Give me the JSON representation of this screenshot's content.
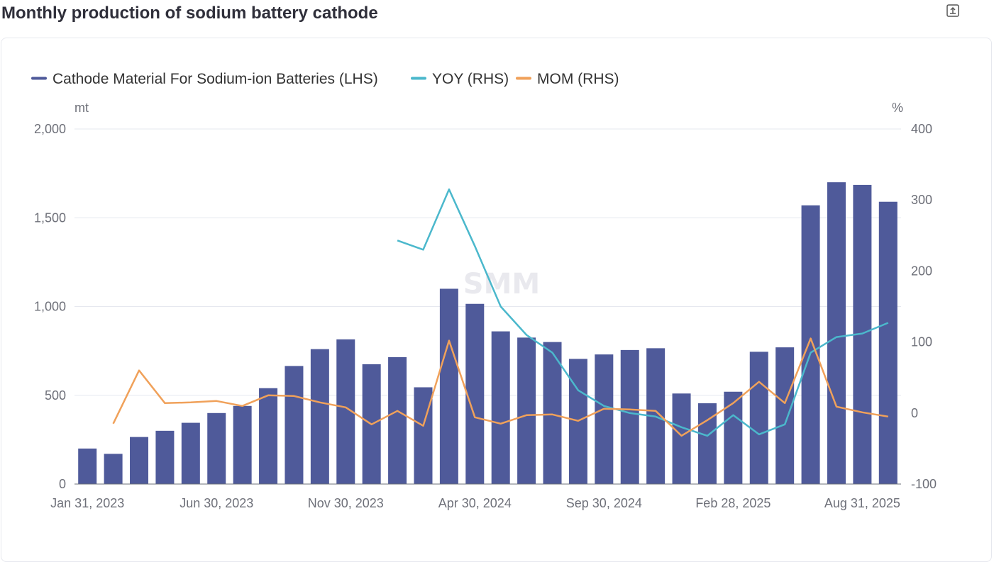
{
  "page": {
    "title": "Monthly production of sodium battery cathode",
    "export_icon": "export-icon"
  },
  "watermark": "SMM",
  "colors": {
    "bar": "#4f5a9a",
    "yoy": "#4bb8cc",
    "mom": "#f0a15a",
    "grid": "#e6e8ef",
    "axis": "#6e7079"
  },
  "chart_data": {
    "type": "bar",
    "legend_position": "top-left",
    "grid": true,
    "left_axis": {
      "unit": "mt",
      "ylim": [
        0,
        2000
      ],
      "ticks": [
        "0",
        "500",
        "1,000",
        "1,500",
        "2,000"
      ]
    },
    "right_axis": {
      "unit": "%",
      "ylim": [
        -100,
        400
      ],
      "ticks": [
        "-100",
        "0",
        "100",
        "200",
        "300",
        "400"
      ]
    },
    "x_tick_labels": [
      "Jan 31, 2023",
      "Jun 30, 2023",
      "Nov 30, 2023",
      "Apr 30, 2024",
      "Sep 30, 2024",
      "Feb 28, 2025",
      "Aug 31, 2025"
    ],
    "categories": [
      "2023-01-31",
      "2023-02-28",
      "2023-03-31",
      "2023-04-30",
      "2023-05-31",
      "2023-06-30",
      "2023-07-31",
      "2023-08-31",
      "2023-09-30",
      "2023-10-31",
      "2023-11-30",
      "2023-12-31",
      "2024-01-31",
      "2024-02-29",
      "2024-03-31",
      "2024-04-30",
      "2024-05-31",
      "2024-06-30",
      "2024-07-31",
      "2024-08-31",
      "2024-09-30",
      "2024-10-31",
      "2024-11-30",
      "2024-12-31",
      "2025-01-31",
      "2025-02-28",
      "2025-03-31",
      "2025-04-30",
      "2025-05-31",
      "2025-06-30",
      "2025-07-31",
      "2025-08-31"
    ],
    "series": [
      {
        "name": "Cathode Material For Sodium-ion Batteries (LHS)",
        "type": "bar",
        "axis": "left",
        "values": [
          200,
          170,
          265,
          300,
          345,
          400,
          440,
          540,
          665,
          760,
          815,
          675,
          715,
          545,
          1100,
          1015,
          860,
          825,
          800,
          705,
          730,
          755,
          765,
          510,
          455,
          520,
          745,
          770,
          1570,
          1700,
          1685,
          1590
        ]
      },
      {
        "name": "YOY (RHS)",
        "type": "line",
        "axis": "right",
        "values": [
          null,
          null,
          null,
          null,
          null,
          null,
          null,
          null,
          null,
          null,
          null,
          null,
          243,
          230,
          315,
          235,
          150,
          110,
          85,
          32,
          10,
          0,
          -5,
          -20,
          -32,
          -3,
          -30,
          -16,
          85,
          107,
          112,
          127
        ]
      },
      {
        "name": "MOM (RHS)",
        "type": "line",
        "axis": "right",
        "values": [
          null,
          -15,
          60,
          14,
          15,
          17,
          10,
          25,
          24,
          15,
          8,
          -16,
          3,
          -18,
          102,
          -6,
          -15,
          -3,
          -2,
          -11,
          6,
          5,
          3,
          -32,
          -10,
          14,
          44,
          14,
          105,
          9,
          1,
          -5
        ]
      }
    ]
  }
}
